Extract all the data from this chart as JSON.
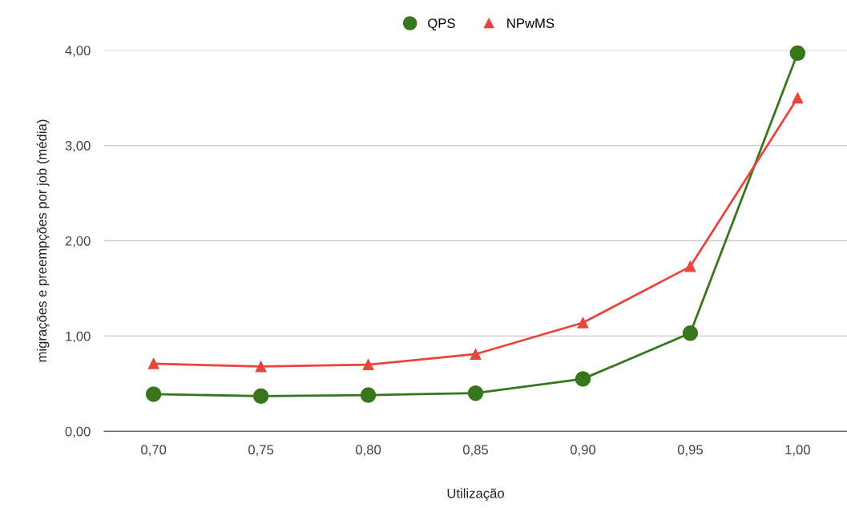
{
  "chart_data": {
    "type": "line",
    "xlabel": "Utilização",
    "ylabel": "migrações e preempções por job (média)",
    "categories": [
      "0,70",
      "0,75",
      "0,80",
      "0,85",
      "0,90",
      "0,95",
      "1,00"
    ],
    "series": [
      {
        "name": "QPS",
        "color": "#38761d",
        "marker": "circle",
        "values": [
          0.39,
          0.37,
          0.38,
          0.4,
          0.55,
          1.03,
          3.97
        ]
      },
      {
        "name": "NPwMS",
        "color": "#e8453c",
        "marker": "triangle",
        "values": [
          0.71,
          0.68,
          0.7,
          0.81,
          1.14,
          1.73,
          3.5
        ]
      }
    ],
    "ylim": [
      0,
      4.0
    ],
    "yticks": [
      {
        "value": 0,
        "label": "0,00"
      },
      {
        "value": 1,
        "label": "1,00"
      },
      {
        "value": 2,
        "label": "2,00"
      },
      {
        "value": 3,
        "label": "3,00"
      },
      {
        "value": 4,
        "label": "4,00"
      }
    ],
    "grid": "y",
    "legend": "top",
    "line_style": "solid"
  }
}
